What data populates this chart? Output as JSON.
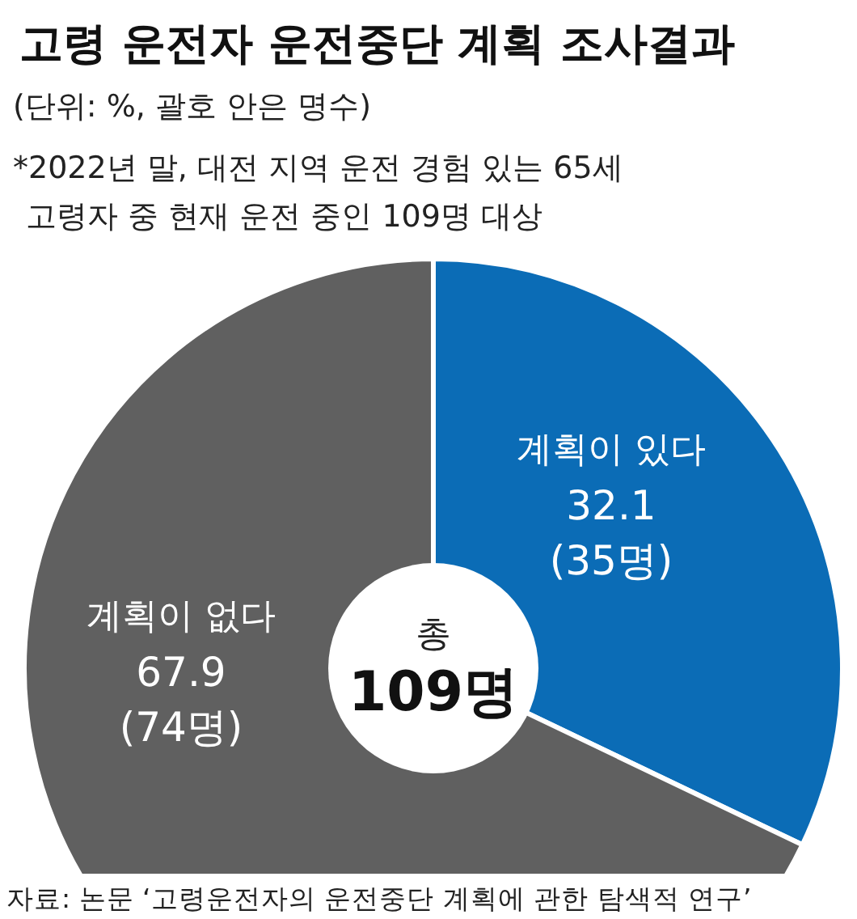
{
  "chart_data": {
    "type": "donut",
    "title": "고령 운전자 운전중단 계획 조사결과",
    "subtitle": "(단위: %, 괄호 안은 명수)",
    "categories": [
      "계획이 있다",
      "계획이 없다"
    ],
    "values": [
      32.1,
      67.9
    ],
    "colors": [
      "#0b6cb6",
      "#606060"
    ],
    "value_labels": [
      "32.1 (35명)",
      "67.9 (74명)"
    ],
    "annotations": [
      "*2022년 말, 대전 지역 운전 경험 있는 65세",
      "고령자 중 현재 운전 중인 109명 대상",
      "총 109명",
      "자료: 논문 ‘고령운전자의 운전중단 계획에 관한 탐색적 연구’"
    ]
  }
}
